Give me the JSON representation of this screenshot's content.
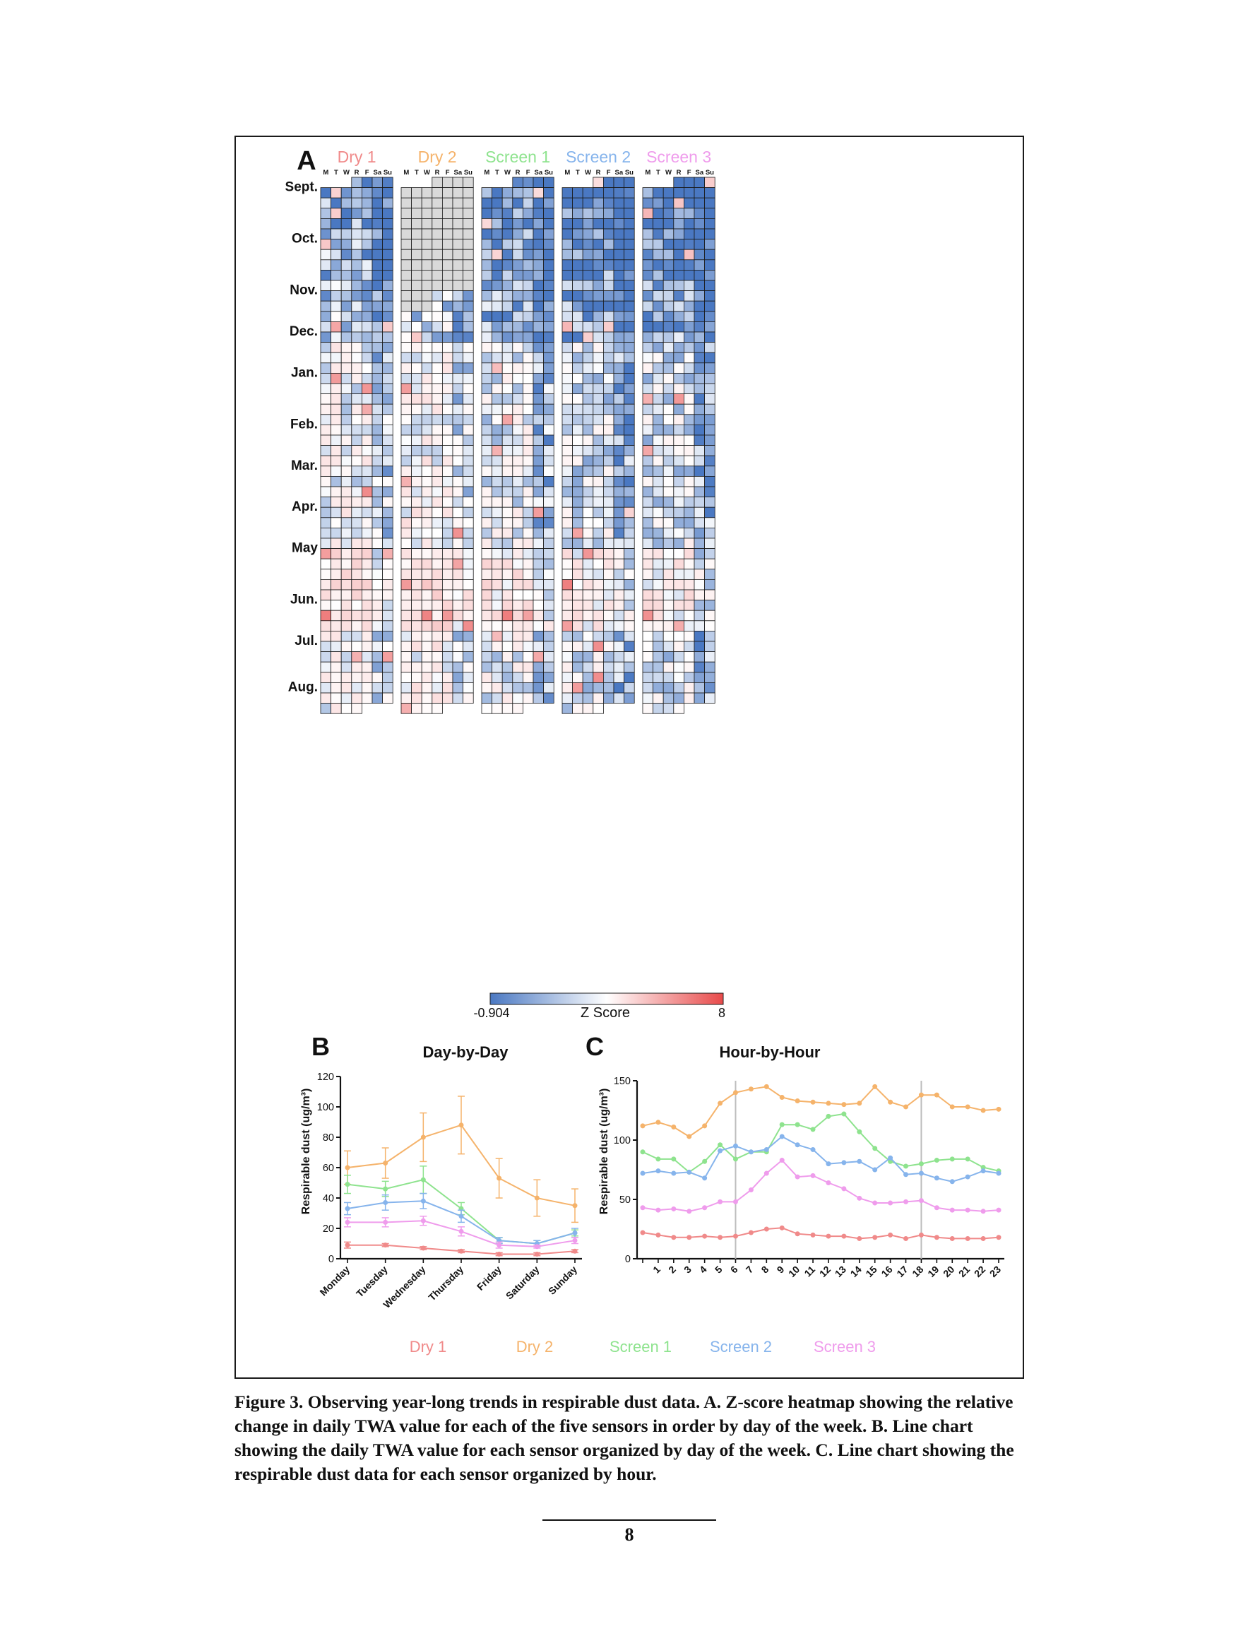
{
  "panels": {
    "a": "A",
    "b": "B",
    "c": "C"
  },
  "sensors": [
    {
      "name": "Dry 1",
      "color": "#f08a8a"
    },
    {
      "name": "Dry 2",
      "color": "#f5b36b"
    },
    {
      "name": "Screen 1",
      "color": "#8ee38e"
    },
    {
      "name": "Screen 2",
      "color": "#86b4ec"
    },
    {
      "name": "Screen 3",
      "color": "#ef9cec"
    }
  ],
  "heatmap": {
    "day_labels": [
      "M",
      "T",
      "W",
      "R",
      "F",
      "Sa",
      "Su"
    ],
    "month_labels": [
      "Sept.",
      "Oct.",
      "Nov.",
      "Dec.",
      "Jan.",
      "Feb.",
      "Mar.",
      "Apr.",
      "May",
      "Jun.",
      "Jul.",
      "Aug."
    ],
    "colorbar": {
      "min_label": "-0.904",
      "max_label": "8",
      "title": "Z Score",
      "low_color": "#4a78c2",
      "mid_color": "#ffffff",
      "high_color": "#e84a4a"
    },
    "no_data_color": "#d9d9d9"
  },
  "chart_data": [
    {
      "type": "line",
      "title": "Day-by-Day",
      "ylabel": "Respirable dust (ug/m³)",
      "xlabel": "",
      "categories": [
        "Monday",
        "Tuesday",
        "Wednesday",
        "Thursday",
        "Friday",
        "Saturday",
        "Sunday"
      ],
      "ylim": [
        0,
        120
      ],
      "yticks": [
        0,
        20,
        40,
        60,
        80,
        100,
        120
      ],
      "grid": false,
      "series": [
        {
          "name": "Dry 1",
          "values": [
            9,
            9,
            7,
            5,
            3,
            3,
            5
          ],
          "errors": [
            2,
            1,
            1,
            1,
            1,
            1,
            1
          ]
        },
        {
          "name": "Dry 2",
          "values": [
            60,
            63,
            80,
            88,
            53,
            40,
            35
          ],
          "errors": [
            11,
            10,
            16,
            19,
            13,
            12,
            11
          ]
        },
        {
          "name": "Screen 1",
          "values": [
            49,
            46,
            52,
            33,
            12,
            10,
            17
          ],
          "errors": [
            6,
            5,
            9,
            4,
            2,
            2,
            2
          ]
        },
        {
          "name": "Screen 2",
          "values": [
            33,
            37,
            38,
            28,
            12,
            10,
            17
          ],
          "errors": [
            4,
            5,
            5,
            4,
            2,
            2,
            3
          ]
        },
        {
          "name": "Screen 3",
          "values": [
            24,
            24,
            25,
            18,
            9,
            8,
            12
          ],
          "errors": [
            3,
            3,
            3,
            3,
            2,
            1,
            2
          ]
        }
      ]
    },
    {
      "type": "line",
      "title": "Hour-by-Hour",
      "ylabel": "Respirable dust (ug/m³)",
      "xlabel": "",
      "x": [
        0,
        1,
        2,
        3,
        4,
        5,
        6,
        7,
        8,
        9,
        10,
        11,
        12,
        13,
        14,
        15,
        16,
        17,
        18,
        19,
        20,
        21,
        22,
        23
      ],
      "xtick_labels": [
        "1",
        "2",
        "3",
        "4",
        "5",
        "6",
        "7",
        "8",
        "9",
        "10",
        "11",
        "12",
        "13",
        "14",
        "15",
        "16",
        "17",
        "18",
        "19",
        "20",
        "21",
        "22",
        "23"
      ],
      "ylim": [
        0,
        150
      ],
      "yticks": [
        0,
        50,
        100,
        150
      ],
      "vertical_reference_lines": [
        6,
        18
      ],
      "grid": false,
      "series": [
        {
          "name": "Dry 1",
          "values": [
            22,
            20,
            18,
            18,
            19,
            18,
            19,
            22,
            25,
            26,
            21,
            20,
            19,
            19,
            17,
            18,
            20,
            17,
            20,
            18,
            17,
            17,
            17,
            18
          ]
        },
        {
          "name": "Dry 2",
          "values": [
            112,
            115,
            111,
            103,
            112,
            131,
            140,
            143,
            145,
            136,
            133,
            132,
            131,
            130,
            131,
            145,
            132,
            128,
            138,
            138,
            128,
            128,
            125,
            126
          ]
        },
        {
          "name": "Screen 1",
          "values": [
            90,
            84,
            84,
            73,
            82,
            96,
            84,
            90,
            90,
            113,
            113,
            109,
            120,
            122,
            107,
            93,
            82,
            78,
            80,
            83,
            84,
            84,
            77,
            74
          ]
        },
        {
          "name": "Screen 2",
          "values": [
            72,
            74,
            72,
            73,
            68,
            91,
            95,
            90,
            92,
            103,
            96,
            92,
            80,
            81,
            82,
            75,
            85,
            71,
            72,
            68,
            65,
            69,
            74,
            72
          ]
        },
        {
          "name": "Screen 3",
          "values": [
            43,
            41,
            42,
            40,
            43,
            48,
            48,
            58,
            72,
            83,
            69,
            70,
            64,
            59,
            51,
            47,
            47,
            48,
            49,
            43,
            41,
            41,
            40,
            41
          ]
        }
      ]
    }
  ],
  "legend": [
    "Dry 1",
    "Dry 2",
    "Screen 1",
    "Screen 2",
    "Screen 3"
  ],
  "caption": "Figure 3.  Observing year-long trends in respirable dust data. A. Z-score heatmap showing the relative change in daily TWA value for each of the five sensors in order by day of the week. B. Line chart showing the daily TWA value for each sensor organized by day of the week. C. Line chart showing the respirable dust data for each sensor organized by hour.",
  "page_number": "8"
}
